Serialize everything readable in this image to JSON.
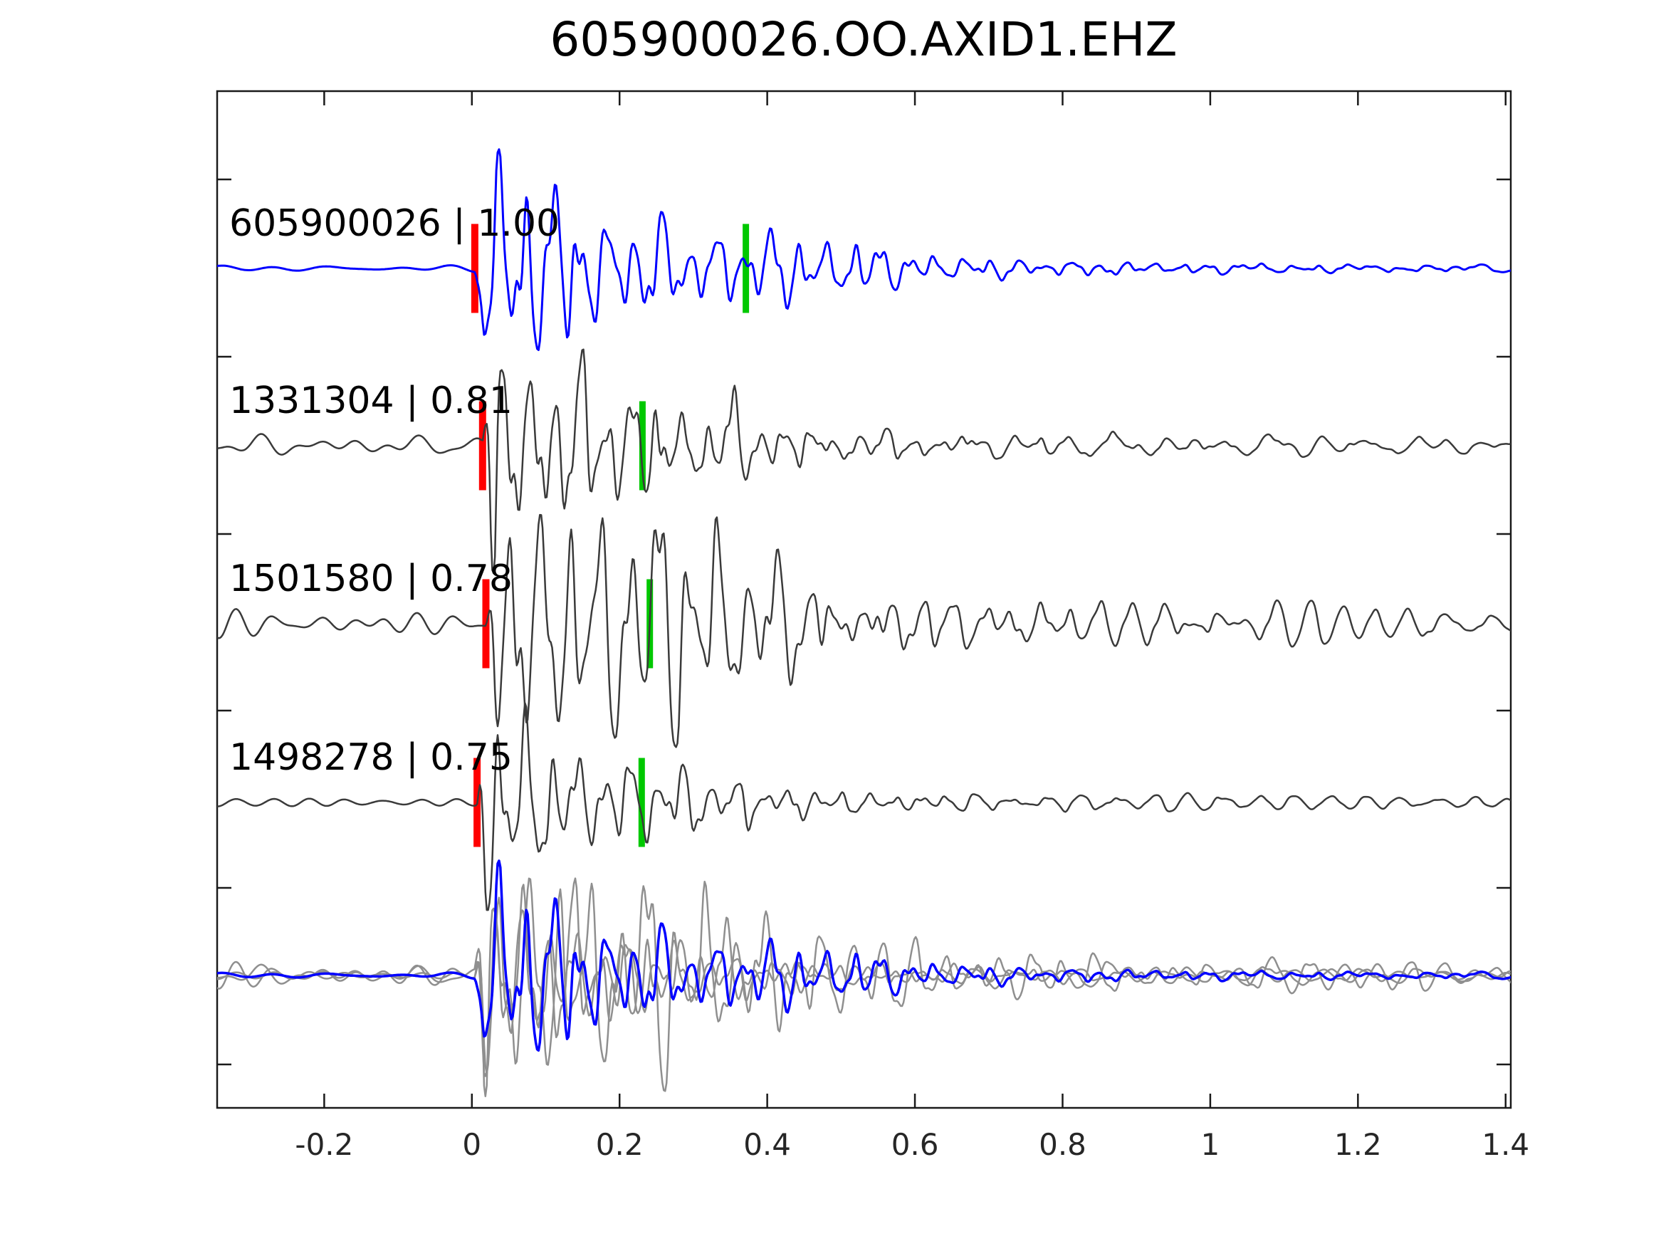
{
  "chart_data": {
    "type": "line",
    "title": "605900026.OO.AXID1.EHZ",
    "xlabel": "",
    "ylabel": "",
    "grid": false,
    "legend": "none",
    "x_axis": {
      "range": [
        -0.345,
        1.407
      ],
      "ticks": [
        -0.2,
        0,
        0.2,
        0.4,
        0.6,
        0.8,
        1,
        1.2,
        1.4
      ],
      "tick_labels": [
        "-0.2",
        "0",
        "0.2",
        "0.4",
        "0.6",
        "0.8",
        "1",
        "1.2",
        "1.4"
      ]
    },
    "colors": {
      "template_trace": "#0000ff",
      "match_trace": "#3a3a3a",
      "overlay_gray": "#8f8f8f",
      "pick_marker": "#ff0000",
      "align_marker": "#00c800",
      "axis": "#1a1a1a"
    },
    "traces": [
      {
        "label": "605900026 | 1.00",
        "event_id": "605900026",
        "correlation": 1.0,
        "row": 1,
        "color": "#0000ff",
        "pick_time": 0.004,
        "align_time": 0.371,
        "waveform": {
          "seed": 11,
          "noise_amp": 4,
          "noise_freq": 13,
          "onset": 0.004,
          "amp": 115,
          "decay": 6.0,
          "coda_amp": 20,
          "coda_decay": 1.6,
          "freq": 27,
          "bump_amp": 14,
          "bump_t": 0.46,
          "bump_w": 0.12
        }
      },
      {
        "label": "1331304 | 0.81",
        "event_id": "1331304",
        "correlation": 0.81,
        "row": 2,
        "color": "#3a3a3a",
        "pick_time": 0.0145,
        "align_time": 0.231,
        "waveform": {
          "seed": 29,
          "noise_amp": 11,
          "noise_freq": 19,
          "onset": 0.0145,
          "amp": 120,
          "decay": 6.5,
          "coda_amp": 16,
          "coda_decay": 1.6,
          "freq": 29,
          "bump_amp": 10,
          "bump_t": 0.3,
          "bump_w": 0.1
        }
      },
      {
        "label": "1501580 | 0.78",
        "event_id": "1501580",
        "correlation": 0.78,
        "row": 3,
        "color": "#3a3a3a",
        "pick_time": 0.019,
        "align_time": 0.241,
        "waveform": {
          "seed": 47,
          "noise_amp": 20,
          "noise_freq": 18,
          "onset": 0.019,
          "amp": 100,
          "decay": 3.2,
          "coda_amp": 22,
          "coda_decay": 1.5,
          "freq": 25,
          "bump_amp": 38,
          "bump_t": 0.26,
          "bump_w": 0.15
        }
      },
      {
        "label": "1498278 | 0.75",
        "event_id": "1498278",
        "correlation": 0.75,
        "row": 4,
        "color": "#3a3a3a",
        "pick_time": 0.007,
        "align_time": 0.23,
        "waveform": {
          "seed": 61,
          "noise_amp": 8,
          "noise_freq": 18,
          "onset": 0.007,
          "amp": 95,
          "decay": 7.0,
          "coda_amp": 13,
          "coda_decay": 1.6,
          "freq": 28,
          "bump_amp": 8,
          "bump_t": 0.3,
          "bump_w": 0.1
        }
      },
      {
        "label": "",
        "event_id": "stack-overlay",
        "row": 5,
        "role": "overlay-of-all-traces-aligned-on-pick",
        "align_onset": 0.004,
        "components": [
          {
            "source": 1,
            "color": "#8f8f8f"
          },
          {
            "source": 2,
            "color": "#8f8f8f"
          },
          {
            "source": 3,
            "color": "#8f8f8f"
          },
          {
            "source": 0,
            "color": "#0000ff"
          }
        ]
      }
    ]
  }
}
